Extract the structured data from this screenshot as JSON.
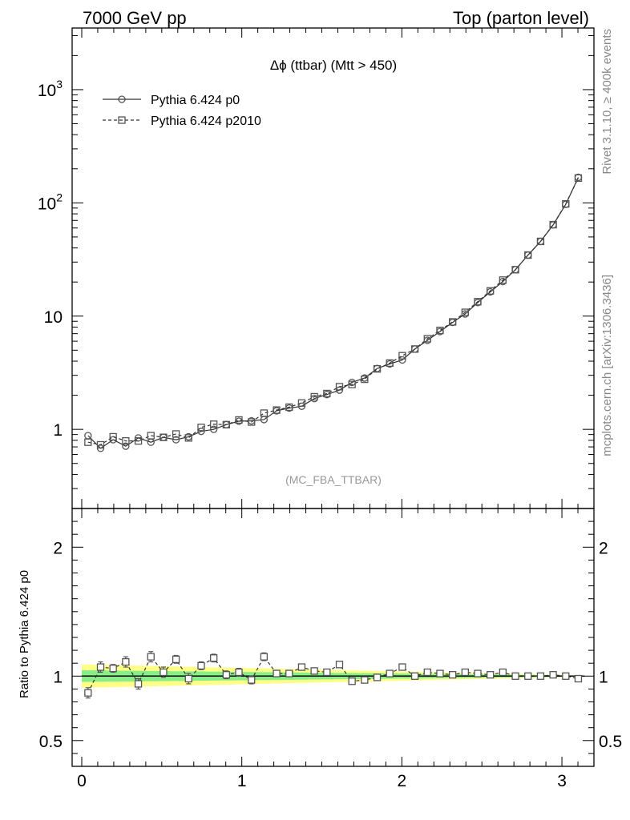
{
  "header": {
    "left": "7000 GeV pp",
    "right": "Top (parton level)"
  },
  "side_labels": {
    "top": "Rivet 3.1.10, ≥ 400k events",
    "bottom": "mcplots.cern.ch [arXiv:1306.3436]"
  },
  "chart_data": {
    "type": "line",
    "title": "Δϕ (ttbar) (Mtt > 450)",
    "analysis_tag": "(MC_FBA_TTBAR)",
    "xlim": [
      -0.06,
      3.2
    ],
    "xticks": [
      0,
      1,
      2,
      3
    ],
    "xtick_labels": [
      "0",
      "1",
      "2",
      "3"
    ],
    "main": {
      "yscale": "log",
      "ylim": [
        0.2,
        3500
      ],
      "yticks": [
        1,
        10,
        100,
        1000
      ],
      "ytick_labels": [
        "1",
        "10",
        "10^2",
        "10^3"
      ]
    },
    "ratio": {
      "ylabel": "Ratio to Pythia 6.424 p0",
      "ylim": [
        0.3,
        2.3
      ],
      "yticks": [
        0.5,
        1,
        2
      ],
      "ytick_labels": [
        "0.5",
        "1",
        "2"
      ]
    },
    "legend_position": "top-left",
    "x": [
      0.0393,
      0.1178,
      0.1963,
      0.2749,
      0.3534,
      0.432,
      0.5105,
      0.589,
      0.6676,
      0.7461,
      0.8247,
      0.9032,
      0.9817,
      1.0603,
      1.1388,
      1.2174,
      1.2959,
      1.3744,
      1.453,
      1.5315,
      1.6101,
      1.6886,
      1.7671,
      1.8457,
      1.9242,
      2.0028,
      2.0813,
      2.1598,
      2.2384,
      2.3169,
      2.3955,
      2.474,
      2.5525,
      2.6311,
      2.7096,
      2.7882,
      2.8667,
      2.9452,
      3.0238,
      3.1023
    ],
    "series": [
      {
        "name": "Pythia 6.424 p0",
        "marker": "circle",
        "line": "solid",
        "values": [
          0.88,
          0.68,
          0.81,
          0.71,
          0.84,
          0.77,
          0.85,
          0.81,
          0.86,
          0.96,
          1.0,
          1.1,
          1.18,
          1.19,
          1.22,
          1.46,
          1.54,
          1.6,
          1.87,
          2.03,
          2.22,
          2.6,
          2.84,
          3.45,
          3.78,
          4.1,
          5.12,
          6.11,
          7.31,
          8.8,
          10.45,
          13.18,
          16.37,
          20.2,
          25.7,
          34.59,
          45.68,
          63.88,
          96.97,
          168.1
        ]
      },
      {
        "name": "Pythia 6.424 p2010",
        "marker": "square",
        "line": "dashed",
        "values": [
          0.77,
          0.73,
          0.86,
          0.79,
          0.79,
          0.88,
          0.85,
          0.91,
          0.84,
          1.04,
          1.11,
          1.1,
          1.21,
          1.16,
          1.39,
          1.48,
          1.57,
          1.71,
          1.94,
          2.07,
          2.38,
          2.49,
          2.77,
          3.42,
          3.85,
          4.47,
          5.12,
          6.31,
          7.48,
          8.89,
          10.8,
          13.41,
          16.7,
          20.8,
          25.7,
          34.6,
          45.7,
          64.2,
          97.9,
          165.6
        ]
      }
    ],
    "ratio_values": [
      0.87,
      1.07,
      1.06,
      1.11,
      0.94,
      1.15,
      1.03,
      1.13,
      0.98,
      1.08,
      1.14,
      1.01,
      1.03,
      0.97,
      1.15,
      1.02,
      1.02,
      1.07,
      1.04,
      1.03,
      1.09,
      0.96,
      0.97,
      0.99,
      1.02,
      1.07,
      1.0,
      1.03,
      1.02,
      1.01,
      1.03,
      1.02,
      1.01,
      1.03,
      1.0,
      1.0,
      1.0,
      1.01,
      1.0,
      0.98
    ],
    "ratio_errors": [
      0.04,
      0.04,
      0.03,
      0.04,
      0.04,
      0.04,
      0.04,
      0.03,
      0.04,
      0.03,
      0.03,
      0.03,
      0.03,
      0.03,
      0.03,
      0.02,
      0.02,
      0.02,
      0.02,
      0.02,
      0.02,
      0.02,
      0.015,
      0.01,
      0.01,
      0.01,
      0.01,
      0.01,
      0.01,
      0.01,
      0.01,
      0.01,
      0.01,
      0.01,
      0.01,
      0.01,
      0.005,
      0.005,
      0.005,
      0.005
    ],
    "bands": {
      "stat_halfwidth_start": 0.045,
      "stat_halfwidth_end": 0.005,
      "total_halfwidth_start": 0.09,
      "total_halfwidth_end": 0.005,
      "stat_color": "#88ee88",
      "total_color": "#ffff88"
    },
    "colors": {
      "marker": "#555555",
      "line": "#333333",
      "tag": "#999999"
    }
  }
}
